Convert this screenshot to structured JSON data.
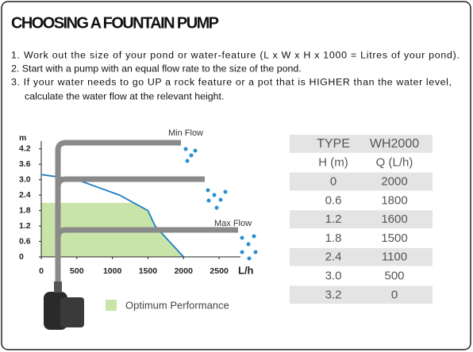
{
  "header": {
    "title": "CHOOSING A FOUNTAIN PUMP",
    "steps": [
      "1. Work out the size of your pond or water-feature (L x W x H x 1000 = Litres of your pond).",
      "2. Start with a pump with an equal flow rate to the size of the pond.",
      "3. If your water needs to go UP a rock feature or a pot that is HIGHER than the water level,",
      "calculate the water flow at the relevant height."
    ]
  },
  "chart_data": {
    "type": "line",
    "y_label": "m",
    "x_label": "L/h",
    "annotations": [
      "Min Flow",
      "Max Flow"
    ],
    "x": [
      2000,
      1800,
      1600,
      1500,
      1100,
      500,
      0
    ],
    "values": [
      0,
      0.6,
      1.2,
      1.8,
      2.4,
      3,
      3.2
    ],
    "value_labels": [
      "0",
      "0.6",
      "1.2",
      "1.8",
      "2.4",
      "3.0",
      "3.2"
    ],
    "color": "#1b7fc1",
    "xlim": [
      0,
      2800
    ],
    "ylim": [
      0,
      4.5
    ],
    "xticks": [
      0,
      500,
      1000,
      1500,
      2000,
      2500
    ],
    "yticks": [
      0,
      0.6,
      1.2,
      1.8,
      2.4,
      {
        "value": 3,
        "label": "3.0"
      },
      3.6,
      4.2
    ],
    "area": {
      "name": "Optimum Performance",
      "color": "#c9e4a8",
      "ylim": [
        0,
        2.1
      ]
    }
  },
  "table": {
    "header": [
      "TYPE",
      "WH2000"
    ],
    "subheader": [
      "H (m)",
      "Q (L/h)"
    ]
  }
}
